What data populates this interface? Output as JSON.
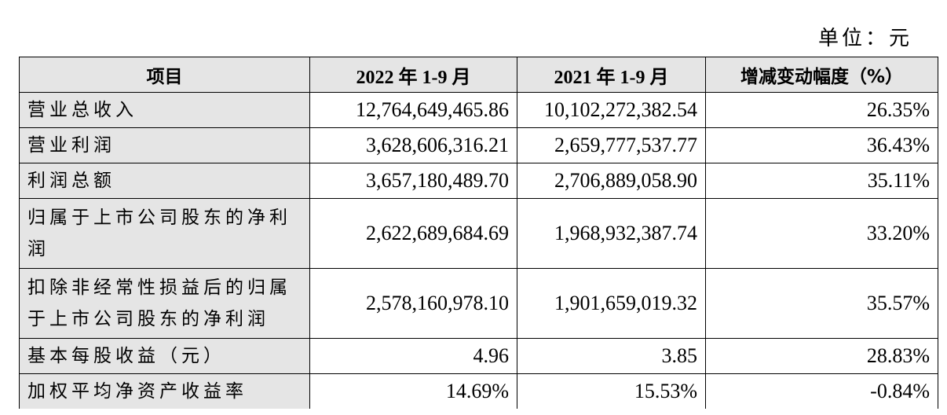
{
  "unit_label": "单位：元",
  "headers": [
    "项目",
    "2022 年 1-9 月",
    "2021 年 1-9 月",
    "增减变动幅度（%）"
  ],
  "rows": [
    {
      "label": "营业总收入",
      "v2022": "12,764,649,465.86",
      "v2021": "10,102,272,382.54",
      "change": "26.35%"
    },
    {
      "label": "营业利润",
      "v2022": "3,628,606,316.21",
      "v2021": "2,659,777,537.77",
      "change": "36.43%"
    },
    {
      "label": "利润总额",
      "v2022": "3,657,180,489.70",
      "v2021": "2,706,889,058.90",
      "change": "35.11%"
    },
    {
      "label": "归属于上市公司股东的净利润",
      "v2022": "2,622,689,684.69",
      "v2021": "1,968,932,387.74",
      "change": "33.20%"
    },
    {
      "label": "扣除非经常性损益后的归属于上市公司股东的净利润",
      "v2022": "2,578,160,978.10",
      "v2021": "1,901,659,019.32",
      "change": "35.57%"
    },
    {
      "label": "基本每股收益（元）",
      "v2022": "4.96",
      "v2021": "3.85",
      "change": "28.83%"
    },
    {
      "label": "加权平均净资产收益率",
      "v2022": "14.69%",
      "v2021": "15.53%",
      "change": "-0.84%"
    }
  ]
}
